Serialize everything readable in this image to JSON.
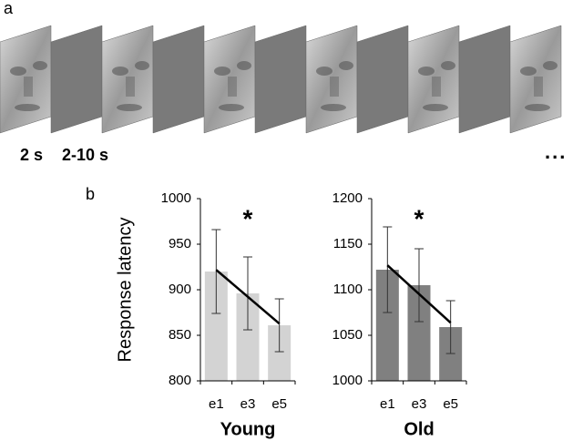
{
  "panel_a": {
    "label": "a",
    "durations": [
      "2 s",
      "2-10 s"
    ],
    "ellipsis": "..."
  },
  "panel_b": {
    "label": "b"
  },
  "chart_data": [
    {
      "type": "bar",
      "ylabel": "Response latency",
      "xlabel": "Young",
      "annotation": "*",
      "categories": [
        "e1",
        "e3",
        "e5"
      ],
      "values": [
        920,
        896,
        861
      ],
      "errors": [
        46,
        40,
        29
      ],
      "color": "#d3d3d3",
      "ylim": [
        800,
        1000
      ],
      "yticks": [
        800,
        850,
        900,
        950,
        1000
      ]
    },
    {
      "type": "bar",
      "xlabel": "Old",
      "annotation": "*",
      "categories": [
        "e1",
        "e3",
        "e5"
      ],
      "values": [
        1122,
        1105,
        1059
      ],
      "errors": [
        47,
        40,
        29
      ],
      "color": "#808080",
      "ylim": [
        1000,
        1200
      ],
      "yticks": [
        1000,
        1050,
        1100,
        1150,
        1200
      ]
    }
  ]
}
